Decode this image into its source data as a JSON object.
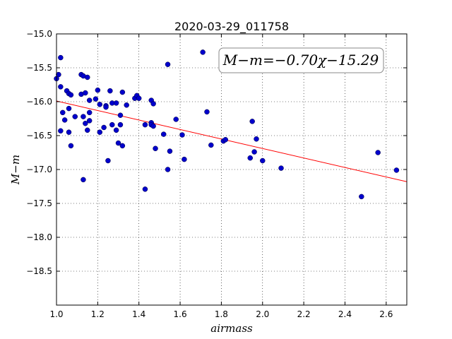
{
  "chart_data": {
    "type": "scatter",
    "title": "2020-03-29_011758",
    "xlabel": "airmass",
    "ylabel": "M−m",
    "xlim": [
      1.0,
      2.7
    ],
    "ylim": [
      -19.0,
      -15.0
    ],
    "y_inverted": false,
    "grid": true,
    "x_ticks": [
      "1.0",
      "1.2",
      "1.4",
      "1.6",
      "1.8",
      "2.0",
      "2.2",
      "2.4",
      "2.6"
    ],
    "y_ticks": [
      "−15.0",
      "−15.5",
      "−16.0",
      "−16.5",
      "−17.0",
      "−17.5",
      "−18.0",
      "−18.5"
    ],
    "annotation": "M−m=−0.70χ−15.29",
    "fit": {
      "slope": -0.7,
      "intercept": -15.29,
      "color": "#ff0000"
    },
    "point_color": "#0000cc",
    "points": [
      [
        1.0,
        -15.66
      ],
      [
        1.01,
        -15.6
      ],
      [
        1.02,
        -15.35
      ],
      [
        1.02,
        -15.78
      ],
      [
        1.02,
        -16.43
      ],
      [
        1.03,
        -16.16
      ],
      [
        1.04,
        -16.27
      ],
      [
        1.05,
        -15.84
      ],
      [
        1.06,
        -15.88
      ],
      [
        1.06,
        -16.1
      ],
      [
        1.06,
        -16.45
      ],
      [
        1.07,
        -16.65
      ],
      [
        1.07,
        -15.9
      ],
      [
        1.09,
        -16.22
      ],
      [
        1.12,
        -15.6
      ],
      [
        1.12,
        -15.89
      ],
      [
        1.13,
        -15.62
      ],
      [
        1.13,
        -16.22
      ],
      [
        1.13,
        -17.15
      ],
      [
        1.14,
        -15.87
      ],
      [
        1.14,
        -16.32
      ],
      [
        1.15,
        -15.64
      ],
      [
        1.15,
        -16.42
      ],
      [
        1.16,
        -15.98
      ],
      [
        1.16,
        -16.16
      ],
      [
        1.16,
        -16.28
      ],
      [
        1.19,
        -15.96
      ],
      [
        1.2,
        -15.83
      ],
      [
        1.21,
        -16.04
      ],
      [
        1.21,
        -16.45
      ],
      [
        1.23,
        -16.38
      ],
      [
        1.24,
        -16.06
      ],
      [
        1.24,
        -16.08
      ],
      [
        1.25,
        -16.87
      ],
      [
        1.26,
        -15.84
      ],
      [
        1.27,
        -16.02
      ],
      [
        1.27,
        -16.34
      ],
      [
        1.29,
        -16.02
      ],
      [
        1.29,
        -16.42
      ],
      [
        1.3,
        -16.61
      ],
      [
        1.31,
        -16.2
      ],
      [
        1.31,
        -16.34
      ],
      [
        1.32,
        -15.86
      ],
      [
        1.32,
        -16.65
      ],
      [
        1.34,
        -16.05
      ],
      [
        1.38,
        -15.95
      ],
      [
        1.39,
        -15.91
      ],
      [
        1.4,
        -15.95
      ],
      [
        1.43,
        -16.34
      ],
      [
        1.43,
        -17.29
      ],
      [
        1.46,
        -15.98
      ],
      [
        1.46,
        -16.31
      ],
      [
        1.46,
        -16.34
      ],
      [
        1.47,
        -16.03
      ],
      [
        1.47,
        -16.36
      ],
      [
        1.48,
        -16.69
      ],
      [
        1.52,
        -16.48
      ],
      [
        1.54,
        -15.45
      ],
      [
        1.54,
        -17.0
      ],
      [
        1.55,
        -16.73
      ],
      [
        1.58,
        -16.26
      ],
      [
        1.61,
        -16.49
      ],
      [
        1.62,
        -16.85
      ],
      [
        1.71,
        -15.27
      ],
      [
        1.73,
        -16.15
      ],
      [
        1.75,
        -16.64
      ],
      [
        1.81,
        -16.58
      ],
      [
        1.82,
        -16.56
      ],
      [
        1.94,
        -16.83
      ],
      [
        1.95,
        -16.29
      ],
      [
        1.96,
        -16.74
      ],
      [
        1.97,
        -16.55
      ],
      [
        2.0,
        -16.87
      ],
      [
        2.09,
        -16.98
      ],
      [
        2.48,
        -17.4
      ],
      [
        2.56,
        -16.75
      ],
      [
        2.65,
        -17.01
      ]
    ]
  }
}
